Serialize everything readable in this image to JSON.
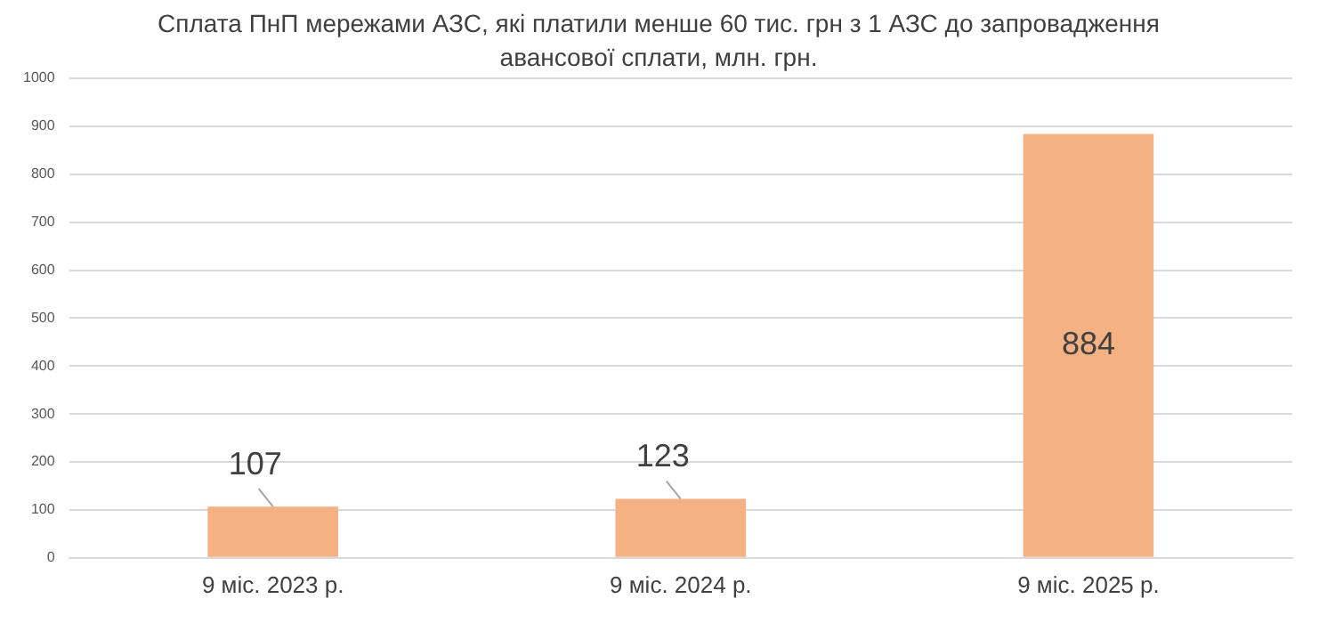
{
  "chart_data": {
    "type": "bar",
    "title": "Сплата ПнП мережами АЗС, які платили менше 60 тис. грн з 1 АЗС до запровадження авансової сплати, млн. грн.",
    "categories": [
      "9 міс. 2023 р.",
      "9 міс. 2024 р.",
      "9 міс. 2025 р."
    ],
    "values": [
      107,
      123,
      884
    ],
    "color": "#f4b183",
    "ylim": [
      0,
      1000
    ],
    "yticks": [
      0,
      100,
      200,
      300,
      400,
      500,
      600,
      700,
      800,
      900,
      1000
    ],
    "grid": "y",
    "data_labels": true
  }
}
